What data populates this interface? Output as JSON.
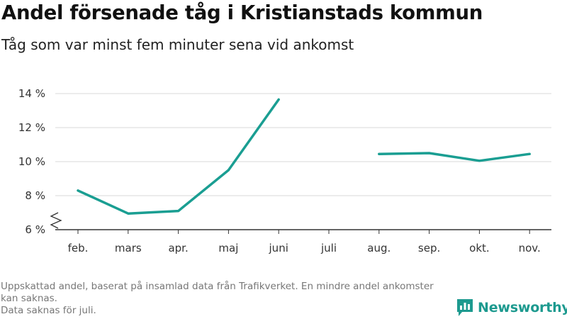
{
  "header": {
    "title": "Andel försenade tåg i Kristianstads kommun",
    "subtitle": "Tåg som var minst fem minuter sena vid ankomst"
  },
  "footnote": {
    "line1": "Uppskattad andel, baserat på insamlad data från Trafikverket. En mindre andel ankomster kan saknas.",
    "line2": "Data saknas för juli."
  },
  "brand": {
    "name": "Newsworthy",
    "icon": "newsworthy-logo-icon",
    "color": "#1d9a8f"
  },
  "chart_data": {
    "type": "line",
    "title": "Andel försenade tåg i Kristianstads kommun",
    "subtitle": "Tåg som var minst fem minuter sena vid ankomst",
    "categories": [
      "feb.",
      "mars",
      "apr.",
      "maj",
      "juni",
      "juli",
      "aug.",
      "sep.",
      "okt.",
      "nov."
    ],
    "series": [
      {
        "values": [
          8.3,
          6.95,
          7.1,
          9.5,
          13.65,
          null,
          10.45,
          10.5,
          10.05,
          10.45
        ]
      }
    ],
    "y_ticks": [
      6,
      8,
      10,
      12,
      14
    ],
    "y_tick_labels": [
      "6 %",
      "8 %",
      "10 %",
      "12 %",
      "14 %"
    ],
    "ylim": [
      6,
      14
    ],
    "y_axis_break": true,
    "grid": true,
    "line_color": "#1a9e92"
  }
}
